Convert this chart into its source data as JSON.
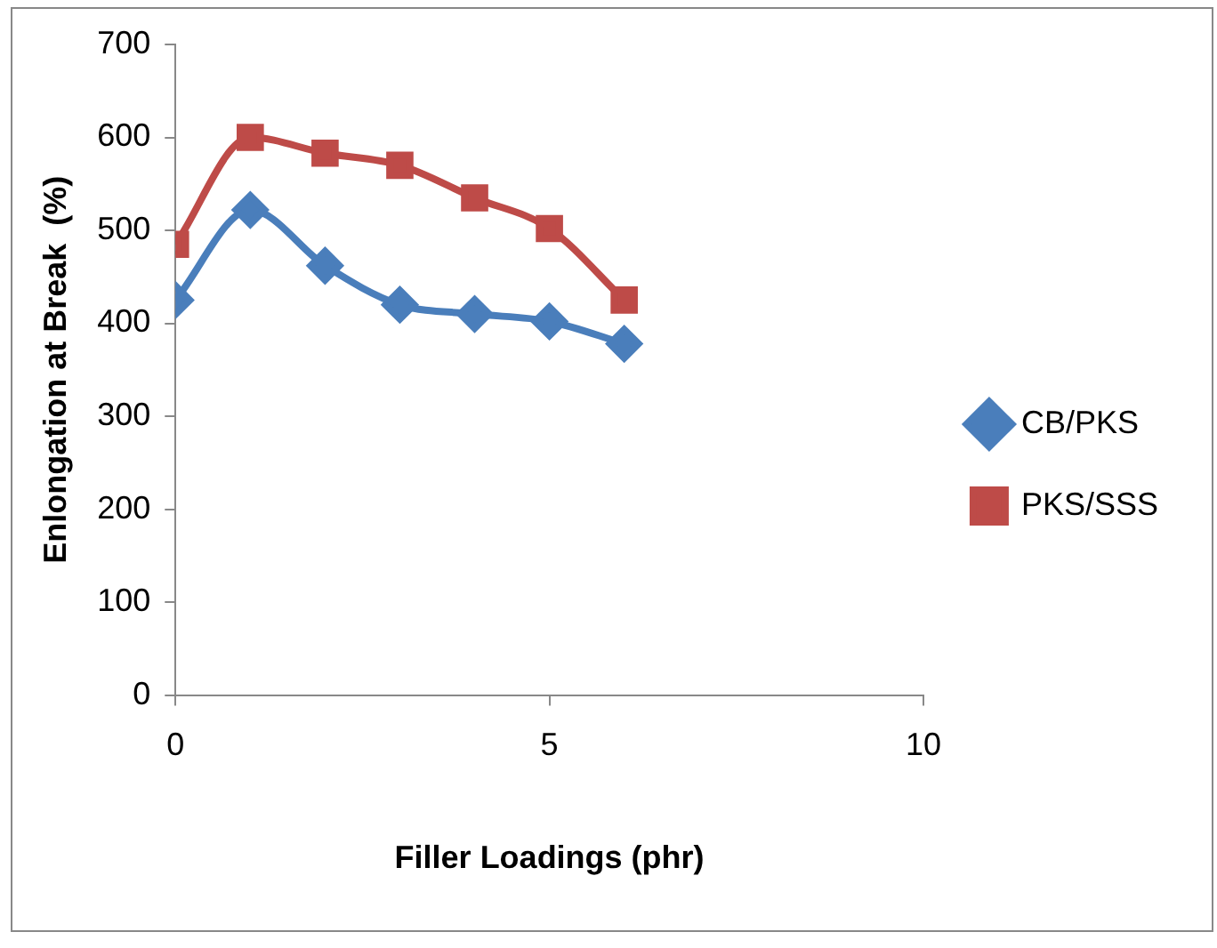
{
  "chart_data": {
    "type": "line",
    "xlabel": "Filler Loadings (phr)",
    "ylabel": "Enlongation at Break  (%)",
    "x": [
      0,
      1,
      2,
      3,
      4,
      5,
      6
    ],
    "xlim": [
      0,
      10
    ],
    "xticks": [
      0,
      5,
      10
    ],
    "ylim": [
      0,
      700
    ],
    "yticks": [
      0,
      100,
      200,
      300,
      400,
      500,
      600,
      700
    ],
    "grid": false,
    "legend": "right",
    "series": [
      {
        "name": "CB/PKS",
        "color": "#4a7ebb",
        "marker": "diamond",
        "values": [
          425,
          522,
          462,
          420,
          410,
          402,
          378
        ]
      },
      {
        "name": "PKS/SSS",
        "color": "#be4b48",
        "marker": "square",
        "values": [
          485,
          600,
          583,
          570,
          535,
          502,
          425
        ]
      }
    ]
  }
}
